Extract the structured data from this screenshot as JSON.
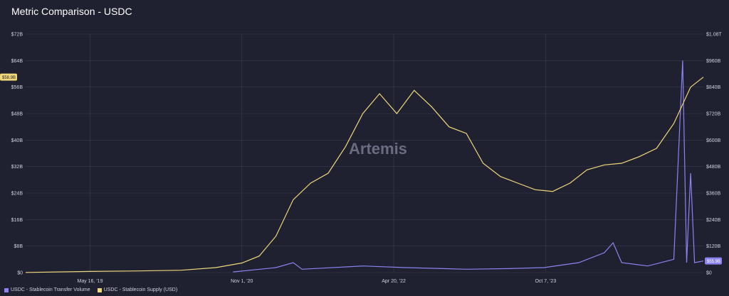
{
  "title": "Metric Comparison - USDC",
  "watermark": "Artemis",
  "colors": {
    "background": "#1f2130",
    "grid": "#3a3d4e",
    "supply": "#f0d77a",
    "volume": "#8b83f0"
  },
  "chart_data": {
    "type": "line",
    "x_ticks": [
      "May 16, '19",
      "Nov 1, '20",
      "Apr 20, '22",
      "Oct 7, '23"
    ],
    "y_left_ticks": [
      "$0",
      "$8B",
      "$16B",
      "$24B",
      "$32B",
      "$40B",
      "$48B",
      "$56B",
      "$64B",
      "$72B"
    ],
    "y_right_ticks": [
      "$0",
      "$120B",
      "$240B",
      "$360B",
      "$480B",
      "$600B",
      "$720B",
      "$840B",
      "$960B",
      "$1.08T"
    ],
    "ylim_left": [
      0,
      72
    ],
    "ylim_right": [
      0,
      1080
    ],
    "current_label_left": "$58.9B",
    "current_label_right": "$55.9B",
    "legend": [
      "USDC - Stablecoin Transfer Volume",
      "USDC - Stablecoin Supply (USD)"
    ],
    "series": [
      {
        "name": "USDC - Stablecoin Supply (USD)",
        "axis": "left",
        "color": "#f0d77a",
        "points": [
          [
            "2018-10-01",
            0.05
          ],
          [
            "2019-05-16",
            0.35
          ],
          [
            "2019-11-01",
            0.5
          ],
          [
            "2020-04-01",
            0.7
          ],
          [
            "2020-08-01",
            1.5
          ],
          [
            "2020-11-01",
            2.9
          ],
          [
            "2021-01-01",
            5.0
          ],
          [
            "2021-03-01",
            11.0
          ],
          [
            "2021-05-01",
            22.0
          ],
          [
            "2021-07-01",
            27.0
          ],
          [
            "2021-09-01",
            30.0
          ],
          [
            "2021-11-01",
            38.0
          ],
          [
            "2022-01-01",
            48.0
          ],
          [
            "2022-03-01",
            54.0
          ],
          [
            "2022-05-01",
            48.0
          ],
          [
            "2022-07-01",
            55.0
          ],
          [
            "2022-09-01",
            50.0
          ],
          [
            "2022-11-01",
            44.0
          ],
          [
            "2023-01-01",
            42.0
          ],
          [
            "2023-03-01",
            33.0
          ],
          [
            "2023-05-01",
            29.0
          ],
          [
            "2023-07-01",
            27.0
          ],
          [
            "2023-09-01",
            25.0
          ],
          [
            "2023-11-01",
            24.5
          ],
          [
            "2024-01-01",
            27.0
          ],
          [
            "2024-03-01",
            31.0
          ],
          [
            "2024-05-01",
            32.5
          ],
          [
            "2024-07-01",
            33.0
          ],
          [
            "2024-09-01",
            35.0
          ],
          [
            "2024-11-01",
            37.5
          ],
          [
            "2025-01-01",
            45.0
          ],
          [
            "2025-03-01",
            56.0
          ],
          [
            "2025-04-15",
            59.0
          ]
        ]
      },
      {
        "name": "USDC - Stablecoin Transfer Volume",
        "axis": "left",
        "color": "#8b83f0",
        "points": [
          [
            "2020-10-01",
            0.2
          ],
          [
            "2021-03-01",
            1.5
          ],
          [
            "2021-05-01",
            3.0
          ],
          [
            "2021-06-01",
            1.0
          ],
          [
            "2022-01-01",
            2.0
          ],
          [
            "2022-06-01",
            1.5
          ],
          [
            "2023-01-01",
            1.0
          ],
          [
            "2023-06-01",
            1.2
          ],
          [
            "2023-10-01",
            1.5
          ],
          [
            "2024-02-01",
            3.0
          ],
          [
            "2024-05-01",
            6.0
          ],
          [
            "2024-06-01",
            9.0
          ],
          [
            "2024-07-01",
            3.0
          ],
          [
            "2024-10-01",
            2.0
          ],
          [
            "2025-01-01",
            4.0
          ],
          [
            "2025-02-01",
            64.0
          ],
          [
            "2025-02-15",
            3.0
          ],
          [
            "2025-03-01",
            30.0
          ],
          [
            "2025-03-15",
            3.0
          ],
          [
            "2025-04-15",
            3.5
          ]
        ]
      }
    ]
  }
}
